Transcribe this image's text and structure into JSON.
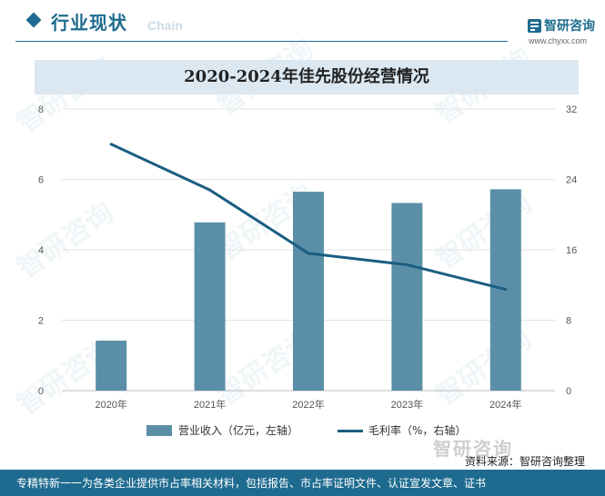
{
  "header": {
    "section_title": "行业现状",
    "section_subtitle": "Chain",
    "brand_name": "智研咨询",
    "brand_url": "www.chyxx.com"
  },
  "watermark_text": "智研咨询",
  "bottom_logo_text": "智研咨询",
  "source_text": "资料来源：智研咨询整理",
  "footer_text": "专精特新一一为各类企业提供市占率相关材料，包括报告、市占率证明文件、认证宣发文章、证书",
  "colors": {
    "bar": "#5b8fa8",
    "line": "#1a5d80",
    "accent": "#1e6b8f"
  },
  "chart_data": {
    "type": "bar",
    "title": "2020-2024年佳先股份经营情况",
    "categories": [
      "2020年",
      "2021年",
      "2022年",
      "2023年",
      "2024年"
    ],
    "series": [
      {
        "name": "营业收入（亿元，左轴）",
        "type": "bar",
        "axis": "left",
        "values": [
          1.42,
          4.78,
          5.65,
          5.33,
          5.72
        ]
      },
      {
        "name": "毛利率（%，右轴）",
        "type": "line",
        "axis": "right",
        "values": [
          28.0,
          22.8,
          15.6,
          14.3,
          11.5
        ]
      }
    ],
    "y_left": {
      "ylim": [
        0,
        8
      ],
      "ticks": [
        "0",
        "2",
        "4",
        "6",
        "8"
      ]
    },
    "y_right": {
      "ylim": [
        0,
        32
      ],
      "ticks": [
        "0",
        "8",
        "16",
        "24",
        "32"
      ]
    },
    "grid": true,
    "legend": "bottom"
  }
}
